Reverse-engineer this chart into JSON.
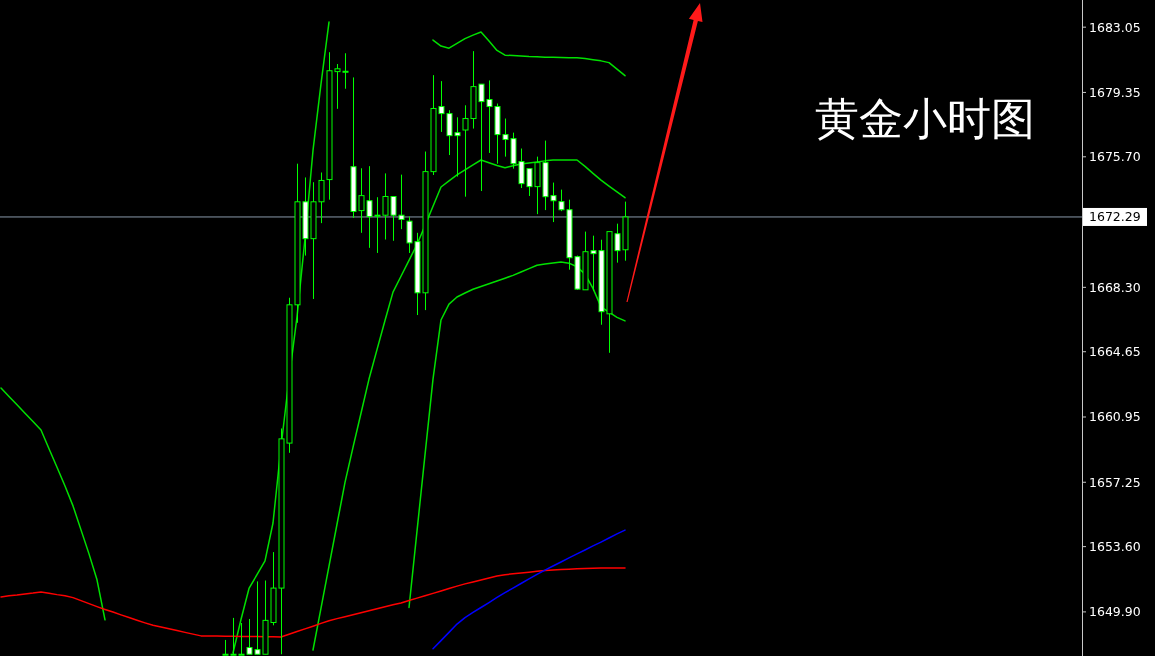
{
  "chart_data": {
    "type": "candlestick",
    "title": "黄金小时图",
    "categories": [
      null,
      null,
      null,
      null,
      null,
      null,
      null,
      null,
      null,
      null,
      null,
      null,
      null,
      null,
      null,
      null,
      null,
      null,
      null,
      null,
      null,
      null,
      null,
      null,
      null,
      null,
      null,
      null,
      null,
      null,
      null,
      null,
      null,
      null,
      null,
      null,
      null,
      null,
      null,
      null,
      null,
      null,
      null,
      null,
      null,
      null,
      null,
      null,
      null,
      null,
      null,
      null,
      null,
      null,
      null,
      null,
      null,
      null,
      null,
      null,
      null,
      null,
      null,
      null,
      null,
      null,
      null,
      null,
      null,
      null,
      null,
      null,
      null,
      null,
      null,
      null,
      null,
      null,
      null
    ],
    "ohlc": [
      null,
      null,
      null,
      null,
      null,
      null,
      null,
      null,
      null,
      null,
      null,
      null,
      null,
      null,
      null,
      null,
      null,
      null,
      null,
      null,
      null,
      null,
      null,
      null,
      null,
      null,
      null,
      null,
      [
        1647.5,
        1648.31,
        1647.5,
        1647.5
      ],
      [
        1647.5,
        1649.56,
        1647.5,
        1647.5
      ],
      [
        1647.5,
        1649.27,
        1647.5,
        1647.5
      ],
      [
        1647.88,
        1649.5,
        1647.5,
        1647.5
      ],
      [
        1647.76,
        1651.63,
        1647.5,
        1647.5
      ],
      [
        1647.5,
        1651.68,
        1647.5,
        1649.42
      ],
      [
        1649.3,
        1653.29,
        1649.14,
        1651.25
      ],
      [
        1651.25,
        1660.3,
        1647.5,
        1659.71
      ],
      [
        1659.47,
        1667.71,
        1658.92,
        1667.31
      ],
      [
        1667.31,
        1675.31,
        1666.29,
        1673.15
      ],
      [
        1673.15,
        1674.53,
        1670.1,
        1671.06
      ],
      [
        1671.06,
        1674.26,
        1667.64,
        1673.15
      ],
      [
        1673.15,
        1674.81,
        1671.94,
        1674.36
      ],
      [
        1674.41,
        1681.63,
        1673.27,
        1680.58
      ],
      [
        1680.53,
        1680.96,
        1678.42,
        1680.69
      ],
      [
        1680.55,
        1681.57,
        1679.56,
        1680.55
      ],
      [
        1675.14,
        1680.2,
        1672.24,
        1672.6
      ],
      [
        1672.65,
        1675.05,
        1671.39,
        1673.5
      ],
      [
        1673.21,
        1675.17,
        1670.54,
        1672.31
      ],
      [
        1672.39,
        1673.41,
        1670.25,
        1672.39
      ],
      [
        1672.39,
        1674.76,
        1671.01,
        1673.45
      ],
      [
        1673.45,
        1673.45,
        1670.94,
        1672.39
      ],
      [
        1672.39,
        1674.69,
        1671.6,
        1672.15
      ],
      [
        1672.05,
        1672.31,
        1670.25,
        1670.82
      ],
      [
        1670.89,
        1671.39,
        1666.73,
        1667.99
      ],
      [
        1667.99,
        1676.0,
        1667.01,
        1674.86
      ],
      [
        1674.86,
        1680.33,
        1674.67,
        1678.44
      ],
      [
        1678.55,
        1679.99,
        1677.11,
        1678.15
      ],
      [
        1678.15,
        1678.34,
        1675.8,
        1676.9
      ],
      [
        1677.07,
        1677.94,
        1674.58,
        1676.9
      ],
      [
        1677.22,
        1678.62,
        1673.44,
        1677.87
      ],
      [
        1677.87,
        1681.69,
        1677.3,
        1679.68
      ],
      [
        1679.82,
        1679.82,
        1673.76,
        1678.83
      ],
      [
        1678.95,
        1680.03,
        1675.92,
        1678.55
      ],
      [
        1678.55,
        1678.72,
        1675.31,
        1676.96
      ],
      [
        1676.96,
        1677.87,
        1675.71,
        1676.68
      ],
      [
        1676.73,
        1677.07,
        1675.03,
        1675.31
      ],
      [
        1675.43,
        1676.17,
        1673.93,
        1674.18
      ],
      [
        1675.03,
        1675.03,
        1673.48,
        1674.01
      ],
      [
        1674.01,
        1675.71,
        1672.45,
        1675.37
      ],
      [
        1675.37,
        1676.62,
        1672.68,
        1673.44
      ],
      [
        1673.5,
        1674.24,
        1672.0,
        1673.21
      ],
      [
        1673.16,
        1673.84,
        1672.62,
        1672.7
      ],
      [
        1672.7,
        1673.27,
        1669.3,
        1669.98
      ],
      [
        1670.04,
        1670.1,
        1668.16,
        1668.2
      ],
      [
        1668.16,
        1671.46,
        1668.16,
        1670.32
      ],
      [
        1670.38,
        1671.23,
        1668.11,
        1670.21
      ],
      [
        1670.38,
        1671.0,
        1666.18,
        1666.92
      ],
      [
        1666.8,
        1671.46,
        1664.59,
        1671.46
      ],
      [
        1671.34,
        1671.91,
        1669.7,
        1670.38
      ],
      [
        1670.43,
        1673.16,
        1669.81,
        1672.29
      ]
    ],
    "series": [
      {
        "type": "line",
        "color": "#00e000",
        "values": [
          1662.59,
          1662.11,
          1661.64,
          1661.16,
          1660.69,
          1660.21,
          1659.15,
          1658.1,
          1657.04,
          1655.91,
          1654.55,
          1653.19,
          1651.72,
          1649.45,
          null,
          null,
          null,
          null,
          null,
          null,
          null,
          null,
          null,
          null,
          null,
          null,
          null,
          null,
          null,
          null,
          null,
          null,
          null,
          null,
          null,
          null,
          null,
          null,
          null,
          null,
          null,
          null,
          null,
          null,
          null,
          null,
          null,
          null,
          null,
          null,
          null,
          null,
          null,
          null,
          null,
          null,
          null,
          null,
          null,
          null,
          null,
          null,
          null,
          null,
          null,
          null,
          null,
          null,
          null,
          null,
          null,
          null,
          null,
          null,
          null,
          null,
          null,
          null,
          null
        ]
      },
      {
        "type": "line",
        "color": "#00e000",
        "values": [
          null,
          null,
          null,
          null,
          null,
          null,
          null,
          null,
          null,
          null,
          null,
          null,
          null,
          null,
          null,
          null,
          null,
          null,
          null,
          null,
          null,
          null,
          null,
          null,
          null,
          null,
          null,
          null,
          null,
          1647.57,
          1649.47,
          1651.23,
          1652.01,
          1652.79,
          1654.94,
          1659.25,
          1663.09,
          1666.63,
          1671.07,
          1676.06,
          1679.83,
          1683.34,
          null,
          null,
          null,
          null,
          null,
          null,
          null,
          null,
          null,
          null,
          null,
          null,
          null,
          null,
          null,
          null,
          null,
          null,
          null,
          null,
          null,
          null,
          null,
          null,
          null,
          null,
          null,
          null,
          null,
          null,
          null,
          null,
          null,
          null,
          null,
          null,
          null
        ]
      },
      {
        "type": "line",
        "color": "#00e000",
        "values": [
          null,
          null,
          null,
          null,
          null,
          null,
          null,
          null,
          null,
          null,
          null,
          null,
          null,
          null,
          null,
          null,
          null,
          null,
          null,
          null,
          null,
          null,
          null,
          null,
          null,
          null,
          null,
          null,
          null,
          null,
          null,
          null,
          null,
          null,
          null,
          null,
          null,
          null,
          null,
          1647.74,
          1650.12,
          1652.49,
          1654.87,
          1657.24,
          1659.23,
          1661.16,
          1663.1,
          1664.77,
          1666.42,
          1668.03,
          1668.93,
          1669.83,
          1670.73,
          1671.8,
          1672.9,
          1673.99,
          1674.34,
          1674.67,
          1674.96,
          1675.24,
          1675.52,
          1675.36,
          1675.21,
          1675.08,
          1675.19,
          1675.29,
          1675.35,
          1675.41,
          1675.47,
          1675.52,
          1675.52,
          1675.52,
          1675.52,
          1675.16,
          1674.76,
          1674.38,
          1674.04,
          1673.71,
          1673.38
        ]
      },
      {
        "type": "line",
        "color": "#00e000",
        "values": [
          null,
          null,
          null,
          null,
          null,
          null,
          null,
          null,
          null,
          null,
          null,
          null,
          null,
          null,
          null,
          null,
          null,
          null,
          null,
          null,
          null,
          null,
          null,
          null,
          null,
          null,
          null,
          null,
          null,
          null,
          null,
          null,
          null,
          null,
          null,
          null,
          null,
          null,
          null,
          null,
          null,
          null,
          null,
          null,
          null,
          null,
          null,
          null,
          null,
          null,
          null,
          1650.15,
          1654.48,
          1658.8,
          1663.1,
          1666.45,
          1667.35,
          1667.75,
          1667.98,
          1668.19,
          1668.35,
          1668.5,
          1668.66,
          1668.82,
          1668.98,
          1669.17,
          1669.36,
          1669.55,
          1669.62,
          1669.68,
          1669.74,
          1669.67,
          1669.47,
          1669.05,
          1668.24,
          1667.19,
          1666.89,
          1666.6,
          1666.4
        ]
      },
      {
        "type": "line",
        "color": "#00e000",
        "values": [
          null,
          null,
          null,
          null,
          null,
          null,
          null,
          null,
          null,
          null,
          null,
          null,
          null,
          null,
          null,
          null,
          null,
          null,
          null,
          null,
          null,
          null,
          null,
          null,
          null,
          null,
          null,
          null,
          null,
          null,
          null,
          null,
          null,
          null,
          null,
          null,
          null,
          null,
          null,
          null,
          null,
          null,
          null,
          null,
          null,
          null,
          null,
          null,
          null,
          null,
          null,
          null,
          null,
          null,
          1682.32,
          1681.98,
          1681.86,
          1682.13,
          1682.4,
          1682.6,
          1682.78,
          1682.26,
          1681.73,
          1681.46,
          1681.44,
          1681.42,
          1681.39,
          1681.37,
          1681.35,
          1681.34,
          1681.33,
          1681.32,
          1681.31,
          1681.27,
          1681.2,
          1681.14,
          1681.04,
          1680.67,
          1680.3
        ]
      },
      {
        "type": "line",
        "color": "#ff0000",
        "values": [
          1650.75,
          1650.81,
          1650.86,
          1650.92,
          1650.97,
          1651.03,
          1650.96,
          1650.88,
          1650.81,
          1650.71,
          1650.54,
          1650.37,
          1650.2,
          1650.04,
          1649.89,
          1649.73,
          1649.58,
          1649.43,
          1649.28,
          1649.14,
          1649.04,
          1648.94,
          1648.84,
          1648.74,
          1648.64,
          1648.54,
          1648.53,
          1648.53,
          1648.52,
          1648.52,
          1648.51,
          1648.51,
          1648.5,
          1648.49,
          1648.49,
          1648.48,
          1648.63,
          1648.79,
          1648.94,
          1649.09,
          1649.25,
          1649.4,
          1649.52,
          1649.63,
          1649.74,
          1649.85,
          1649.96,
          1650.08,
          1650.19,
          1650.3,
          1650.41,
          1650.55,
          1650.68,
          1650.82,
          1650.95,
          1651.09,
          1651.23,
          1651.36,
          1651.49,
          1651.6,
          1651.71,
          1651.82,
          1651.93,
          1652.01,
          1652.06,
          1652.11,
          1652.15,
          1652.2,
          1652.25,
          1652.28,
          1652.3,
          1652.32,
          1652.34,
          1652.36,
          1652.37,
          1652.39,
          1652.39,
          1652.39,
          1652.39
        ]
      },
      {
        "type": "line",
        "color": "#0000ff",
        "values": [
          null,
          null,
          null,
          null,
          null,
          null,
          null,
          null,
          null,
          null,
          null,
          null,
          null,
          null,
          null,
          null,
          null,
          null,
          null,
          null,
          null,
          null,
          null,
          null,
          null,
          null,
          null,
          null,
          null,
          null,
          null,
          null,
          null,
          null,
          null,
          null,
          null,
          null,
          null,
          null,
          null,
          null,
          null,
          null,
          null,
          null,
          null,
          null,
          null,
          null,
          null,
          null,
          null,
          null,
          1647.81,
          1648.27,
          1648.74,
          1649.21,
          1649.58,
          1649.87,
          1650.15,
          1650.43,
          1650.72,
          1650.99,
          1651.25,
          1651.51,
          1651.77,
          1652.03,
          1652.27,
          1652.5,
          1652.73,
          1652.96,
          1653.19,
          1653.41,
          1653.64,
          1653.86,
          1654.09,
          1654.32,
          1654.54
        ]
      }
    ],
    "ylim": [
      1647.4,
      1684.59
    ],
    "yticks": [
      {
        "value": 1683.05,
        "label": "1683.05"
      },
      {
        "value": 1679.35,
        "label": "1679.35"
      },
      {
        "value": 1675.7,
        "label": "1675.70"
      },
      {
        "value": 1668.3,
        "label": "1668.30"
      },
      {
        "value": 1664.65,
        "label": "1664.65"
      },
      {
        "value": 1660.95,
        "label": "1660.95"
      },
      {
        "value": 1657.25,
        "label": "1657.25"
      },
      {
        "value": 1653.6,
        "label": "1653.60"
      },
      {
        "value": 1649.9,
        "label": "1649.90"
      }
    ],
    "tick_labels": "y",
    "ref_lines": [
      {
        "axis": "y",
        "value": 1672.29,
        "label": "1672.29",
        "color": "#8898aa"
      }
    ]
  }
}
